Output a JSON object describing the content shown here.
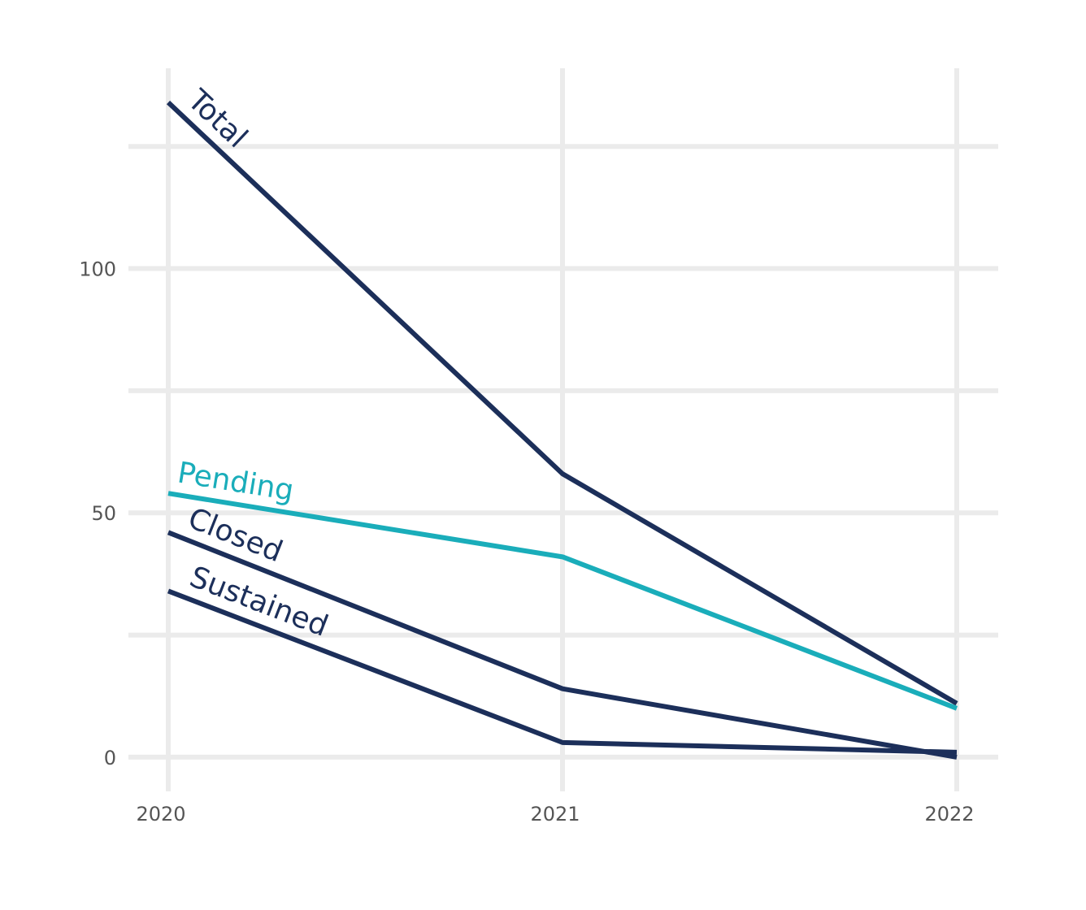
{
  "chart_data": {
    "type": "line",
    "x": [
      "2020",
      "2021",
      "2022"
    ],
    "ylim": [
      -7,
      141
    ],
    "y_ticks": [
      0,
      50,
      100
    ],
    "y_tick_labels": [
      "0",
      "50",
      "100"
    ],
    "y_minor_gridlines": [
      25,
      75,
      125
    ],
    "grid": true,
    "legend": "direct-labels",
    "series": [
      {
        "name": "Total",
        "values": [
          134,
          58,
          11
        ],
        "color": "#1c2f5a"
      },
      {
        "name": "Pending",
        "values": [
          54,
          41,
          10
        ],
        "color": "#1aadba"
      },
      {
        "name": "Closed",
        "values": [
          46,
          14,
          0
        ],
        "color": "#1c2f5a"
      },
      {
        "name": "Sustained",
        "values": [
          34,
          3,
          1
        ],
        "color": "#1c2f5a"
      }
    ]
  }
}
